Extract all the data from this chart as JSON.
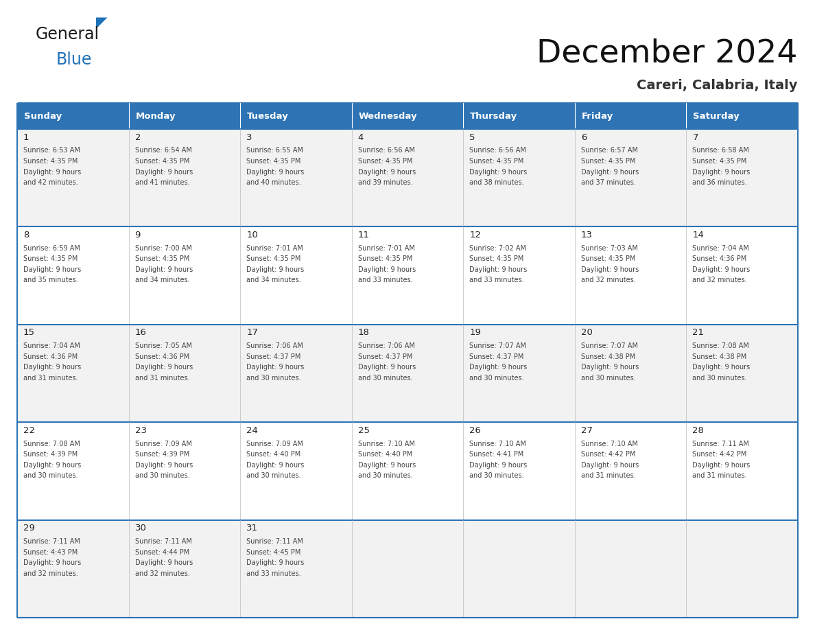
{
  "title": "December 2024",
  "subtitle": "Careri, Calabria, Italy",
  "header_bg_color": "#2E74B5",
  "header_text_color": "#FFFFFF",
  "cell_bg_color_1": "#F2F2F2",
  "cell_bg_color_2": "#FFFFFF",
  "row_divider_color": "#2E74B5",
  "cell_border_color": "#CCCCCC",
  "text_color": "#444444",
  "day_number_color": "#222222",
  "days_of_week": [
    "Sunday",
    "Monday",
    "Tuesday",
    "Wednesday",
    "Thursday",
    "Friday",
    "Saturday"
  ],
  "weeks": [
    [
      {
        "day": 1,
        "sunrise": "6:53 AM",
        "sunset": "4:35 PM",
        "daylight_min": "42 minutes."
      },
      {
        "day": 2,
        "sunrise": "6:54 AM",
        "sunset": "4:35 PM",
        "daylight_min": "41 minutes."
      },
      {
        "day": 3,
        "sunrise": "6:55 AM",
        "sunset": "4:35 PM",
        "daylight_min": "40 minutes."
      },
      {
        "day": 4,
        "sunrise": "6:56 AM",
        "sunset": "4:35 PM",
        "daylight_min": "39 minutes."
      },
      {
        "day": 5,
        "sunrise": "6:56 AM",
        "sunset": "4:35 PM",
        "daylight_min": "38 minutes."
      },
      {
        "day": 6,
        "sunrise": "6:57 AM",
        "sunset": "4:35 PM",
        "daylight_min": "37 minutes."
      },
      {
        "day": 7,
        "sunrise": "6:58 AM",
        "sunset": "4:35 PM",
        "daylight_min": "36 minutes."
      }
    ],
    [
      {
        "day": 8,
        "sunrise": "6:59 AM",
        "sunset": "4:35 PM",
        "daylight_min": "35 minutes."
      },
      {
        "day": 9,
        "sunrise": "7:00 AM",
        "sunset": "4:35 PM",
        "daylight_min": "34 minutes."
      },
      {
        "day": 10,
        "sunrise": "7:01 AM",
        "sunset": "4:35 PM",
        "daylight_min": "34 minutes."
      },
      {
        "day": 11,
        "sunrise": "7:01 AM",
        "sunset": "4:35 PM",
        "daylight_min": "33 minutes."
      },
      {
        "day": 12,
        "sunrise": "7:02 AM",
        "sunset": "4:35 PM",
        "daylight_min": "33 minutes."
      },
      {
        "day": 13,
        "sunrise": "7:03 AM",
        "sunset": "4:35 PM",
        "daylight_min": "32 minutes."
      },
      {
        "day": 14,
        "sunrise": "7:04 AM",
        "sunset": "4:36 PM",
        "daylight_min": "32 minutes."
      }
    ],
    [
      {
        "day": 15,
        "sunrise": "7:04 AM",
        "sunset": "4:36 PM",
        "daylight_min": "31 minutes."
      },
      {
        "day": 16,
        "sunrise": "7:05 AM",
        "sunset": "4:36 PM",
        "daylight_min": "31 minutes."
      },
      {
        "day": 17,
        "sunrise": "7:06 AM",
        "sunset": "4:37 PM",
        "daylight_min": "30 minutes."
      },
      {
        "day": 18,
        "sunrise": "7:06 AM",
        "sunset": "4:37 PM",
        "daylight_min": "30 minutes."
      },
      {
        "day": 19,
        "sunrise": "7:07 AM",
        "sunset": "4:37 PM",
        "daylight_min": "30 minutes."
      },
      {
        "day": 20,
        "sunrise": "7:07 AM",
        "sunset": "4:38 PM",
        "daylight_min": "30 minutes."
      },
      {
        "day": 21,
        "sunrise": "7:08 AM",
        "sunset": "4:38 PM",
        "daylight_min": "30 minutes."
      }
    ],
    [
      {
        "day": 22,
        "sunrise": "7:08 AM",
        "sunset": "4:39 PM",
        "daylight_min": "30 minutes."
      },
      {
        "day": 23,
        "sunrise": "7:09 AM",
        "sunset": "4:39 PM",
        "daylight_min": "30 minutes."
      },
      {
        "day": 24,
        "sunrise": "7:09 AM",
        "sunset": "4:40 PM",
        "daylight_min": "30 minutes."
      },
      {
        "day": 25,
        "sunrise": "7:10 AM",
        "sunset": "4:40 PM",
        "daylight_min": "30 minutes."
      },
      {
        "day": 26,
        "sunrise": "7:10 AM",
        "sunset": "4:41 PM",
        "daylight_min": "30 minutes."
      },
      {
        "day": 27,
        "sunrise": "7:10 AM",
        "sunset": "4:42 PM",
        "daylight_min": "31 minutes."
      },
      {
        "day": 28,
        "sunrise": "7:11 AM",
        "sunset": "4:42 PM",
        "daylight_min": "31 minutes."
      }
    ],
    [
      {
        "day": 29,
        "sunrise": "7:11 AM",
        "sunset": "4:43 PM",
        "daylight_min": "32 minutes."
      },
      {
        "day": 30,
        "sunrise": "7:11 AM",
        "sunset": "4:44 PM",
        "daylight_min": "32 minutes."
      },
      {
        "day": 31,
        "sunrise": "7:11 AM",
        "sunset": "4:45 PM",
        "daylight_min": "33 minutes."
      },
      null,
      null,
      null,
      null
    ]
  ],
  "logo_text_general": "General",
  "logo_text_blue": "Blue",
  "logo_blue": "#1F72B8",
  "logo_dark": "#1A1A1A",
  "fig_width": 11.88,
  "fig_height": 9.18,
  "dpi": 100
}
